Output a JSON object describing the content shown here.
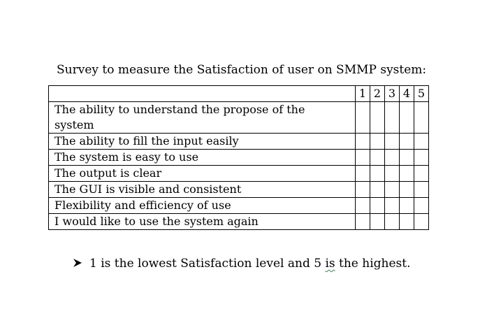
{
  "title": "Survey to measure the Satisfaction of user on SMMP system:",
  "scale": [
    "1",
    "2",
    "3",
    "4",
    "5"
  ],
  "questions": [
    {
      "line1": "The ability to understand the propose of the",
      "line2": "system"
    },
    {
      "line1": "The ability to fill the input easily"
    },
    {
      "line1": "The system is easy to use"
    },
    {
      "line1": "The output is clear"
    },
    {
      "line1": "The GUI is visible and consistent"
    },
    {
      "line1": "Flexibility and efficiency of use"
    },
    {
      "line1": "I would like to use the system again"
    }
  ],
  "note": {
    "bullet_icon": "arrow-bullet-icon",
    "before": "1 is the lowest Satisfaction level and 5 ",
    "flagged_word": "is",
    "after": " the highest.",
    "spellcheck_underline_color": "#2e8b57"
  }
}
